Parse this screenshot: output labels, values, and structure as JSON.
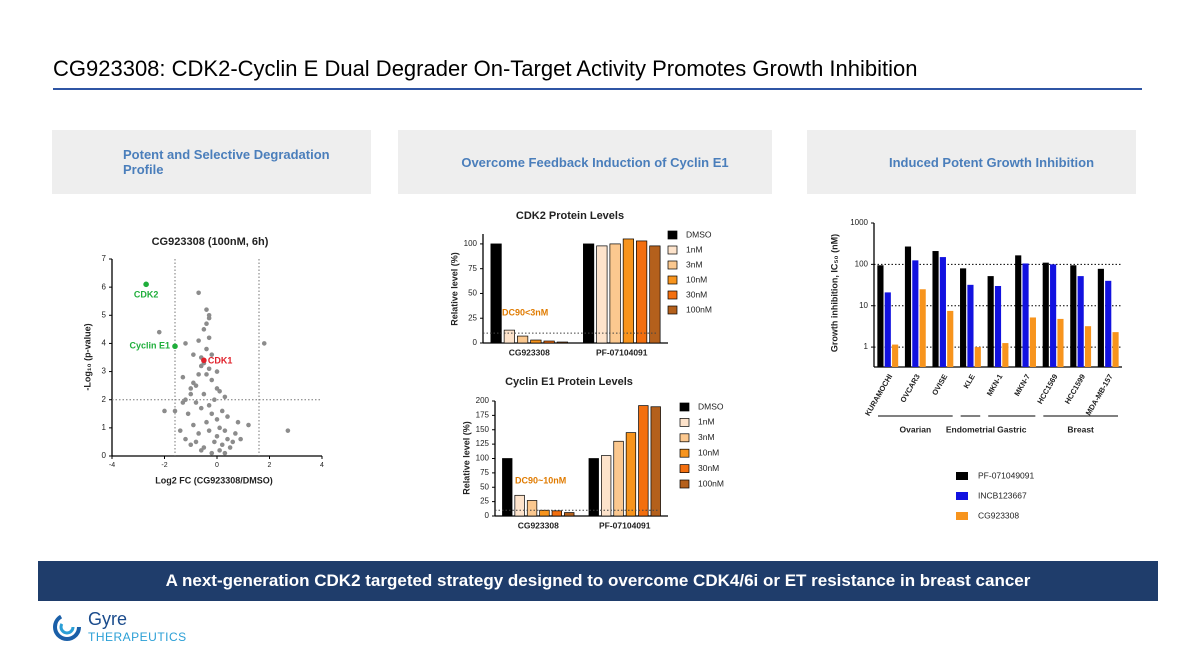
{
  "title": "CG923308: CDK2-Cyclin E Dual Degrader On-Target Activity Promotes Growth Inhibition",
  "panels": [
    "Potent and Selective Degradation Profile",
    "Overcome Feedback Induction of Cyclin E1",
    "Induced Potent Growth Inhibition"
  ],
  "banner": "A next-generation CDK2 targeted strategy designed to overcome CDK4/6i or ET resistance in breast cancer",
  "logo": {
    "name": "Gyre",
    "tagline": "THERAPEUTICS"
  },
  "chart_data": [
    {
      "type": "scatter",
      "title": "CG923308 (100nM, 6h)",
      "xlabel": "Log2 FC (CG923308/DMSO)",
      "ylabel": "-Log₁₀ (p-value)",
      "xlim": [
        -4,
        4
      ],
      "xticks": [
        -4,
        -2,
        0,
        2,
        4
      ],
      "ylim": [
        0,
        7
      ],
      "yticks": [
        0,
        1,
        2,
        3,
        4,
        5,
        6,
        7
      ],
      "series": [
        {
          "color": "#8c8c8c",
          "x": [
            -0.2,
            0.1,
            -0.5,
            0.3,
            -0.1,
            0.0,
            -0.3,
            0.2,
            -0.6,
            0.4,
            -0.8,
            0.5,
            -0.4,
            0.1,
            -0.2,
            0.0,
            -0.7,
            0.3,
            -1.0,
            0.6,
            -0.3,
            -0.1,
            0.2,
            -0.5,
            0.0,
            -0.9,
            0.4,
            -1.2,
            0.7,
            -0.6,
            -0.2,
            0.1,
            -0.4,
            0.3,
            -1.4,
            0.9,
            -0.8,
            -0.3,
            0.0,
            -0.5,
            -1.1,
            -0.7,
            -0.2,
            -0.4,
            -0.6,
            -0.3,
            -0.9,
            -1.3,
            -0.5,
            -0.7,
            -0.4,
            -0.3,
            -0.6,
            -1.0,
            -1.2,
            -2.2,
            -0.7,
            -0.4,
            -0.3,
            -1.2,
            -0.9,
            1.8,
            2.7,
            -2.0,
            -1.6,
            -1.3,
            -1.0,
            1.2,
            0.8,
            -0.8
          ],
          "y": [
            0.1,
            0.2,
            0.3,
            0.1,
            0.5,
            0.7,
            0.9,
            0.4,
            0.2,
            0.6,
            0.5,
            0.3,
            1.2,
            1.0,
            1.5,
            1.3,
            0.8,
            0.9,
            0.4,
            0.5,
            1.8,
            2.0,
            1.6,
            2.2,
            2.4,
            1.1,
            1.4,
            0.6,
            0.8,
            1.7,
            2.7,
            2.3,
            2.9,
            2.1,
            0.9,
            0.6,
            2.5,
            3.1,
            3.0,
            3.3,
            1.5,
            2.9,
            3.6,
            3.8,
            3.2,
            4.2,
            2.6,
            1.9,
            4.5,
            4.1,
            4.7,
            5.0,
            3.5,
            2.4,
            2.0,
            4.4,
            5.8,
            5.2,
            4.9,
            4.0,
            3.6,
            4.0,
            0.9,
            1.6,
            1.6,
            2.8,
            2.2,
            1.1,
            1.2,
            1.9
          ]
        }
      ],
      "annotations": [
        {
          "text": "CDK2",
          "x": -2.7,
          "y": 6.1,
          "color": "#1fae3b",
          "anchor": "below"
        },
        {
          "text": "Cyclin E1",
          "x": -1.6,
          "y": 3.9,
          "color": "#1fae3b",
          "anchor": "left"
        },
        {
          "text": "CDK1",
          "x": -0.5,
          "y": 3.4,
          "color": "#e0202a",
          "anchor": "right"
        }
      ],
      "thresholds": {
        "x": [
          -1.6,
          1.6
        ],
        "y": [
          2
        ]
      }
    },
    {
      "type": "bar",
      "title": "CDK2 Protein Levels",
      "ylabel": "Relative level (%)",
      "categories": [
        "CG923308",
        "PF-07104091"
      ],
      "series": [
        {
          "name": "DMSO",
          "color": "#000000",
          "values": [
            100,
            100
          ]
        },
        {
          "name": "1nM",
          "color": "#fde3cb",
          "values": [
            13,
            98
          ]
        },
        {
          "name": "3nM",
          "color": "#fbc88f",
          "values": [
            7,
            100
          ]
        },
        {
          "name": "10nM",
          "color": "#f7941d",
          "values": [
            3,
            105
          ]
        },
        {
          "name": "30nM",
          "color": "#f36f0f",
          "values": [
            2,
            103
          ]
        },
        {
          "name": "100nM",
          "color": "#b4601c",
          "values": [
            1,
            98
          ]
        }
      ],
      "ylim": [
        0,
        110
      ],
      "yticks": [
        0,
        25,
        50,
        75,
        100
      ],
      "annotation": "DC90<3nM",
      "annotation_color": "#e07b00",
      "reference_line": 10,
      "legend": "right"
    },
    {
      "type": "bar",
      "title": "Cyclin E1 Protein Levels",
      "ylabel": "Relative level (%)",
      "categories": [
        "CG923308",
        "PF-07104091"
      ],
      "series": [
        {
          "name": "DMSO",
          "color": "#000000",
          "values": [
            100,
            100
          ]
        },
        {
          "name": "1nM",
          "color": "#fde3cb",
          "values": [
            36,
            105
          ]
        },
        {
          "name": "3nM",
          "color": "#fbc88f",
          "values": [
            27,
            130
          ]
        },
        {
          "name": "10nM",
          "color": "#f7941d",
          "values": [
            10,
            145
          ]
        },
        {
          "name": "30nM",
          "color": "#f36f0f",
          "values": [
            9,
            192
          ]
        },
        {
          "name": "100nM",
          "color": "#b4601c",
          "values": [
            6,
            190
          ]
        }
      ],
      "ylim": [
        0,
        200
      ],
      "yticks": [
        0,
        25,
        50,
        75,
        100,
        125,
        150,
        175,
        200
      ],
      "annotation": "DC90~10nM",
      "annotation_color": "#e07b00",
      "reference_line": 10,
      "legend": "right"
    },
    {
      "type": "bar",
      "ylabel": "Growth inhibition, IC₅₀ (nM)",
      "log_scale": true,
      "grid": true,
      "categories": [
        "KURAMOCHI",
        "OVCAR3",
        "OVISE",
        "KLE",
        "MKN-1",
        "MKN-7",
        "HCC1569",
        "HCC1599",
        "MDA-MB-157"
      ],
      "series": [
        {
          "name": "PF-071049091",
          "color": "#000000",
          "values": [
            95,
            270,
            210,
            80,
            52,
            165,
            110,
            95,
            78
          ]
        },
        {
          "name": "INCB123667",
          "color": "#1212e0",
          "values": [
            21,
            125,
            150,
            32,
            30,
            105,
            100,
            52,
            40
          ]
        },
        {
          "name": "CG923308",
          "color": "#f7941d",
          "values": [
            1.15,
            25,
            7.5,
            1.0,
            1.25,
            5.2,
            4.8,
            3.2,
            2.3
          ]
        }
      ],
      "ylim": [
        0.33,
        1000
      ],
      "yticks": [
        1,
        10,
        100,
        1000
      ],
      "groups": [
        {
          "label": "Ovarian",
          "start": 0,
          "end": 2
        },
        {
          "label": "Endometrial",
          "start": 3,
          "end": 3
        },
        {
          "label": "Gastric",
          "start": 4,
          "end": 5
        },
        {
          "label": "Breast",
          "start": 6,
          "end": 8
        }
      ],
      "legend": "bottom"
    }
  ]
}
